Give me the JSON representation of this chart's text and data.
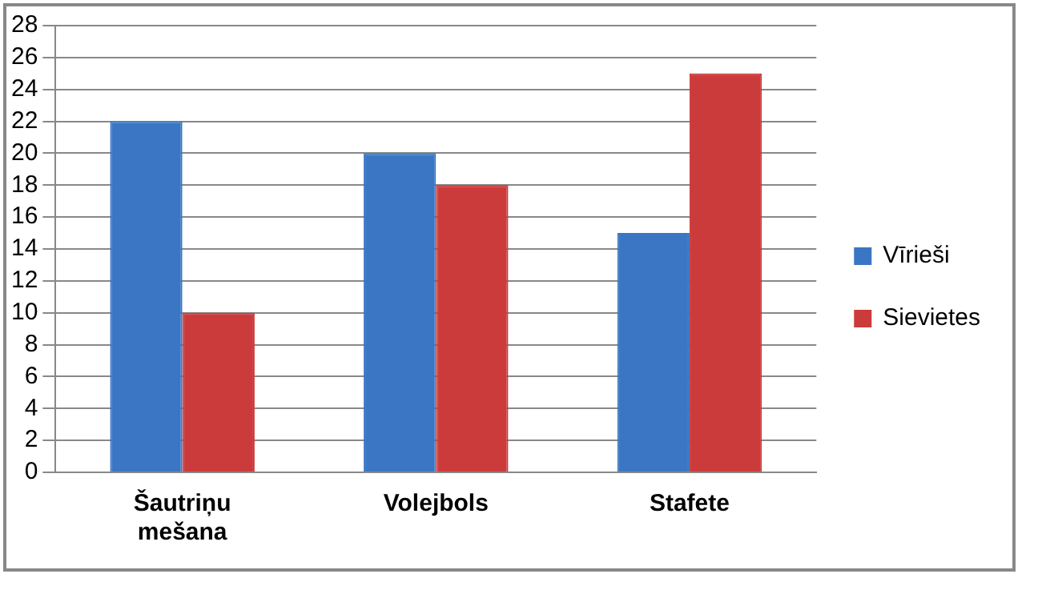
{
  "chart_data": {
    "type": "bar",
    "categories": [
      "Šautriņu mešana",
      "Volejbols",
      "Stafete"
    ],
    "series": [
      {
        "name": "Vīrieši",
        "color": "#3a76c4",
        "values": [
          22,
          20,
          15
        ]
      },
      {
        "name": "Sievietes",
        "color": "#cc3b3b",
        "values": [
          10,
          18,
          25
        ]
      }
    ],
    "ylim": [
      0,
      28
    ],
    "yticks": [
      0,
      2,
      4,
      6,
      8,
      10,
      12,
      14,
      16,
      18,
      20,
      22,
      24,
      26,
      28
    ],
    "grid": "y",
    "legend": "right"
  }
}
